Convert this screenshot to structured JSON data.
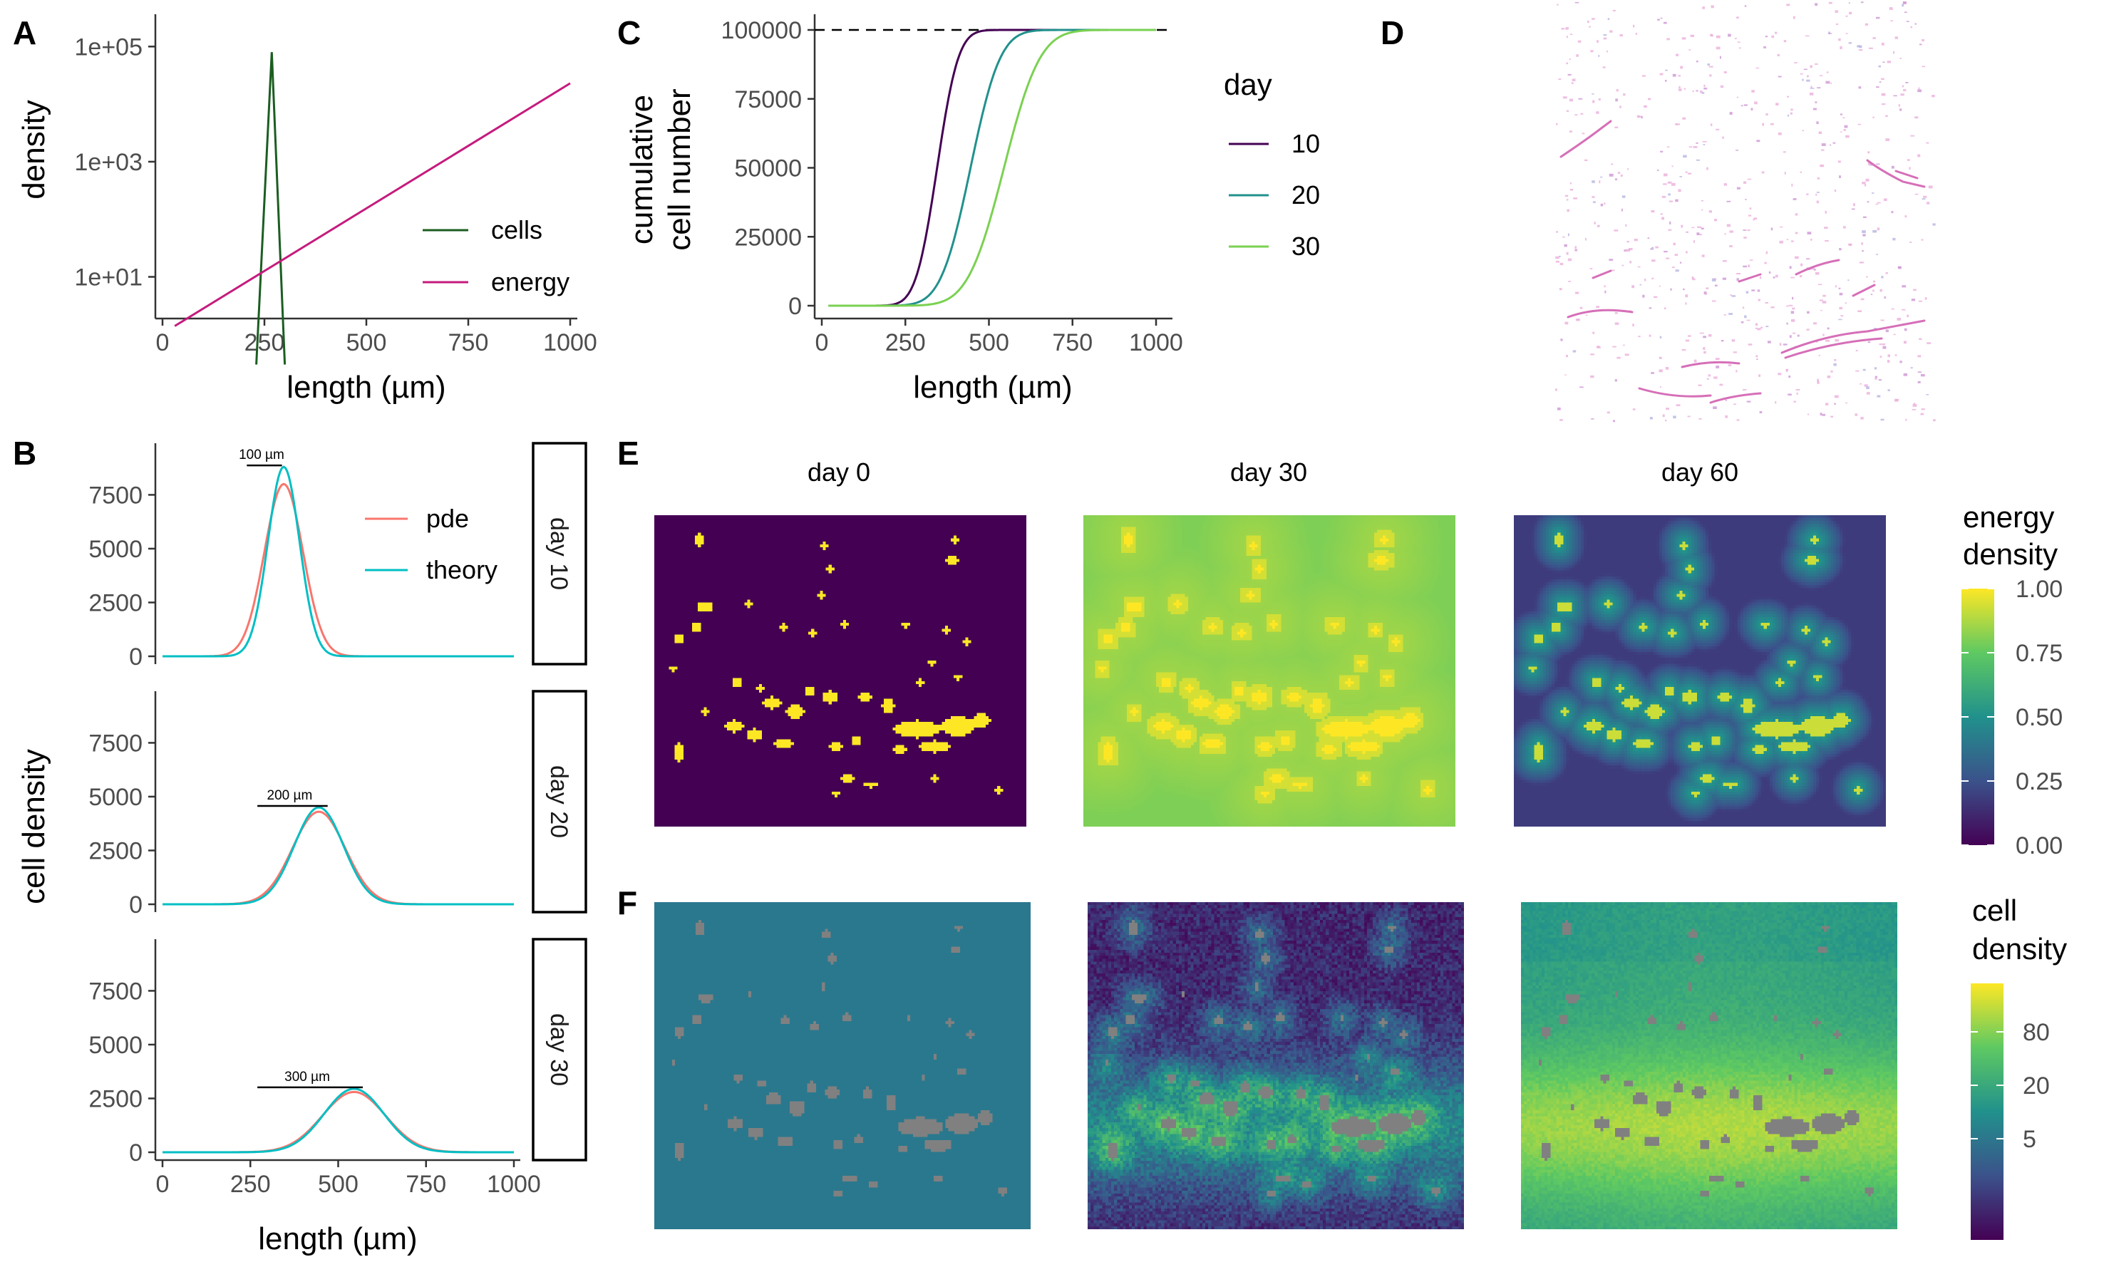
{
  "panels": {
    "A": {
      "label": "A"
    },
    "B": {
      "label": "B"
    },
    "C": {
      "label": "C"
    },
    "D": {
      "label": "D"
    },
    "E": {
      "label": "E"
    },
    "F": {
      "label": "F"
    }
  },
  "colors": {
    "cells": "#1b5e20",
    "energy": "#c51b7d",
    "pde": "#f8766d",
    "theory": "#00bfc4",
    "day10": "#440154",
    "day20": "#21918c",
    "day30": "#7ad151",
    "viridis": [
      "#440154",
      "#3b528b",
      "#21918c",
      "#5ec962",
      "#fde725"
    ],
    "teal_bg": "#2a788e",
    "grey_obj": "#808080"
  },
  "chart_data": [
    {
      "id": "A",
      "type": "line",
      "ylabel": "density",
      "xlabel": "length (µm)",
      "ylog": true,
      "xlim": [
        0,
        1000
      ],
      "xticks": [
        "0",
        "250",
        "500",
        "750",
        "1000"
      ],
      "yticks": [
        "1e+01",
        "1e+03",
        "1e+05"
      ],
      "series": [
        {
          "name": "cells",
          "x": [
            230,
            268,
            300
          ],
          "y": [
            0.3,
            80000,
            0.3
          ]
        },
        {
          "name": "energy",
          "x": [
            30,
            1000
          ],
          "y": [
            1.4,
            23000
          ]
        }
      ]
    },
    {
      "id": "B",
      "type": "line",
      "ylabel": "cell density",
      "xlabel": "length (µm)",
      "xlim": [
        0,
        1000
      ],
      "ylim": [
        0,
        9500
      ],
      "xticks": [
        "0",
        "250",
        "500",
        "750",
        "1000"
      ],
      "yticks": [
        "0",
        "2500",
        "5000",
        "7500"
      ],
      "facets": [
        {
          "strip": "day 10",
          "annotation": "100 µm",
          "bar": [
            240,
            340
          ],
          "pde_peak": [
            345,
            8000
          ],
          "pde_sigma": 55,
          "theory_peak": [
            345,
            8800
          ],
          "theory_sigma": 45
        },
        {
          "strip": "day 20",
          "annotation": "200 µm",
          "bar": [
            270,
            470
          ],
          "pde_peak": [
            445,
            4300
          ],
          "pde_sigma": 75,
          "theory_peak": [
            445,
            4500
          ],
          "theory_sigma": 70
        },
        {
          "strip": "day 30",
          "annotation": "300 µm",
          "bar": [
            270,
            570
          ],
          "pde_peak": [
            545,
            2800
          ],
          "pde_sigma": 90,
          "theory_peak": [
            545,
            2950
          ],
          "theory_sigma": 85
        }
      ],
      "series": [
        {
          "name": "pde"
        },
        {
          "name": "theory"
        }
      ]
    },
    {
      "id": "C",
      "type": "line",
      "ylabel": [
        "cumulative",
        "cell number"
      ],
      "xlabel": "length (µm)",
      "xlim": [
        0,
        1000
      ],
      "ylim": [
        0,
        100000
      ],
      "xticks": [
        "0",
        "250",
        "500",
        "750",
        "1000"
      ],
      "yticks": [
        "0",
        "25000",
        "50000",
        "75000",
        "100000"
      ],
      "hline": 100000,
      "legend_title": "day",
      "series": [
        {
          "name": "10",
          "mid": 345,
          "sigma": 50
        },
        {
          "name": "20",
          "mid": 445,
          "sigma": 70
        },
        {
          "name": "30",
          "mid": 545,
          "sigma": 85
        }
      ]
    }
  ],
  "E": {
    "columns": [
      "day 0",
      "day 30",
      "day 60"
    ],
    "legend": {
      "title": [
        "energy",
        "density"
      ],
      "ticks": [
        "0.00",
        "0.25",
        "0.50",
        "0.75",
        "1.00"
      ]
    }
  },
  "F": {
    "legend": {
      "title": [
        "cell",
        "density"
      ],
      "ticks": [
        "5",
        "20",
        "80"
      ]
    }
  }
}
